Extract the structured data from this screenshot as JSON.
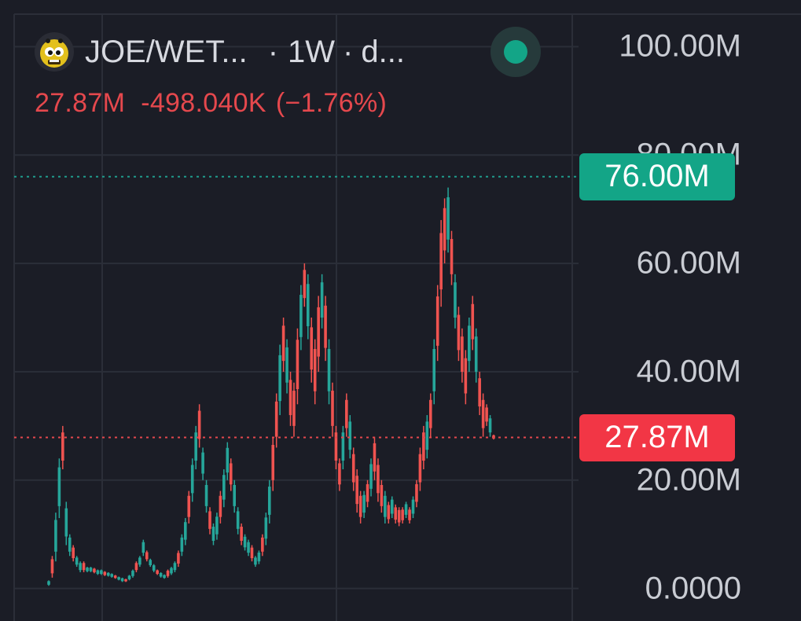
{
  "header": {
    "pair": "JOE/WET...",
    "interval_sep": "·",
    "interval": "1W",
    "source_sep": "·",
    "source": "d...",
    "avatar_icon": "joe-mascot-icon",
    "status_icon": "live-status-dot",
    "status_color": "#13a587"
  },
  "stats": {
    "last": "27.87M",
    "change": "-498.040K",
    "change_pct": "(−1.76%)",
    "color": "#e5484d"
  },
  "badges": {
    "high": "76.00M",
    "last": "27.87M"
  },
  "colors": {
    "up": "#26a69a",
    "down": "#ef5350",
    "background": "#1b1d26",
    "grid": "#2b2e38"
  },
  "chart_data": {
    "type": "candlestick",
    "y_ticks": [
      "100.00M",
      "80.00M",
      "60.00M",
      "40.00M",
      "20.00M",
      "0.0000"
    ],
    "y_tick_values": [
      100,
      80,
      60,
      40,
      20,
      0
    ],
    "ylim": [
      -6,
      106
    ],
    "units": "M",
    "high_line": 76,
    "last_line": 27.87,
    "grid": true,
    "candles": [
      [
        0.5,
        1.5
      ],
      [
        2,
        6
      ],
      [
        5,
        14
      ],
      [
        13,
        24
      ],
      [
        22,
        30
      ],
      [
        8,
        16
      ],
      [
        6,
        10
      ],
      [
        5,
        8
      ],
      [
        4,
        6
      ],
      [
        3,
        5
      ],
      [
        3,
        5
      ],
      [
        3,
        4
      ],
      [
        3,
        4
      ],
      [
        2.8,
        3.8
      ],
      [
        2.5,
        3.5
      ],
      [
        2.5,
        3.5
      ],
      [
        2.3,
        3.2
      ],
      [
        2.2,
        3
      ],
      [
        2,
        2.8
      ],
      [
        1.8,
        2.5
      ],
      [
        1.5,
        2.2
      ],
      [
        1.2,
        2
      ],
      [
        1.2,
        1.8
      ],
      [
        1.5,
        2.5
      ],
      [
        2,
        3.5
      ],
      [
        3,
        5
      ],
      [
        4,
        6
      ],
      [
        6,
        9
      ],
      [
        5,
        7
      ],
      [
        4,
        5.5
      ],
      [
        3,
        4.5
      ],
      [
        2.5,
        3.5
      ],
      [
        2,
        3
      ],
      [
        1.8,
        2.6
      ],
      [
        2,
        3.5
      ],
      [
        2.5,
        4
      ],
      [
        3,
        5
      ],
      [
        4,
        7
      ],
      [
        6,
        10
      ],
      [
        8,
        13
      ],
      [
        12,
        18
      ],
      [
        16,
        24
      ],
      [
        22,
        30
      ],
      [
        26,
        34
      ],
      [
        20,
        26
      ],
      [
        14,
        20
      ],
      [
        10,
        15
      ],
      [
        8,
        12
      ],
      [
        9,
        14
      ],
      [
        12,
        18
      ],
      [
        15,
        22
      ],
      [
        20,
        27
      ],
      [
        18,
        24
      ],
      [
        14,
        20
      ],
      [
        10,
        15
      ],
      [
        8,
        12
      ],
      [
        7,
        10
      ],
      [
        6,
        9
      ],
      [
        5,
        8
      ],
      [
        4,
        6
      ],
      [
        4.5,
        7
      ],
      [
        6,
        10
      ],
      [
        8,
        14
      ],
      [
        12,
        20
      ],
      [
        18,
        28
      ],
      [
        26,
        36
      ],
      [
        32,
        45
      ],
      [
        40,
        50
      ],
      [
        36,
        46
      ],
      [
        30,
        40
      ],
      [
        28,
        38
      ],
      [
        34,
        48
      ],
      [
        44,
        56
      ],
      [
        52,
        60
      ],
      [
        46,
        58
      ],
      [
        38,
        50
      ],
      [
        34,
        46
      ],
      [
        40,
        54
      ],
      [
        48,
        58
      ],
      [
        42,
        54
      ],
      [
        34,
        46
      ],
      [
        28,
        38
      ],
      [
        22,
        30
      ],
      [
        18,
        24
      ],
      [
        22,
        30
      ],
      [
        28,
        36
      ],
      [
        24,
        32
      ],
      [
        18,
        26
      ],
      [
        14,
        22
      ],
      [
        12,
        18
      ],
      [
        13,
        18
      ],
      [
        15,
        20
      ],
      [
        17,
        24
      ],
      [
        20,
        28
      ],
      [
        16,
        24
      ],
      [
        14,
        20
      ],
      [
        12,
        18
      ],
      [
        12,
        16
      ],
      [
        13,
        17
      ],
      [
        12,
        15.5
      ],
      [
        11.5,
        15
      ],
      [
        12,
        15
      ],
      [
        13,
        16
      ],
      [
        12,
        15
      ],
      [
        13,
        17
      ],
      [
        15,
        20
      ],
      [
        18,
        26
      ],
      [
        22,
        30
      ],
      [
        24,
        32
      ],
      [
        28,
        36
      ],
      [
        34,
        46
      ],
      [
        42,
        56
      ],
      [
        52,
        68
      ],
      [
        60,
        72
      ],
      [
        62,
        74
      ],
      [
        56,
        66
      ],
      [
        48,
        58
      ],
      [
        42,
        52
      ],
      [
        38,
        48
      ],
      [
        34,
        44
      ],
      [
        40,
        50
      ],
      [
        44,
        54
      ],
      [
        38,
        48
      ],
      [
        32,
        40
      ],
      [
        28,
        36
      ],
      [
        30,
        34
      ],
      [
        28,
        32
      ],
      [
        27.5,
        28.4
      ]
    ]
  }
}
